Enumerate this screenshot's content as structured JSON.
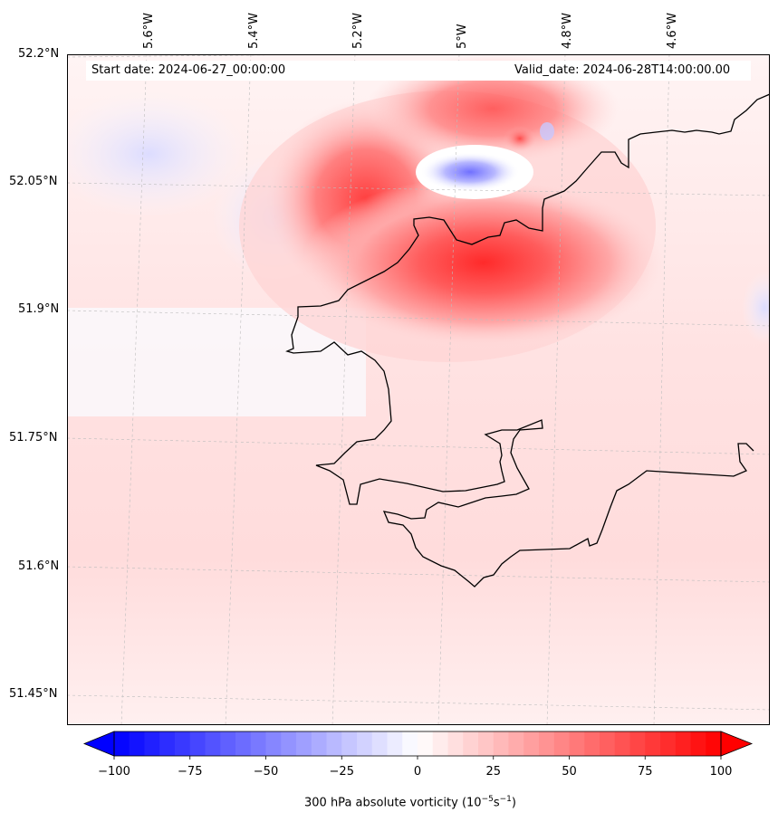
{
  "header": {
    "start_date": "Start date: 2024-06-27_00:00:00",
    "valid_date": "Valid_date: 2024-06-28T14:00:00.00"
  },
  "axes": {
    "lat_labels": [
      "52.2°N",
      "52.05°N",
      "51.9°N",
      "51.75°N",
      "51.6°N",
      "51.45°N"
    ],
    "lon_labels": [
      "5.6°W",
      "5.4°W",
      "5.2°W",
      "5°W",
      "4.8°W",
      "4.6°W"
    ]
  },
  "colorbar": {
    "ticks": [
      "−100",
      "−75",
      "−50",
      "−25",
      "0",
      "25",
      "50",
      "75",
      "100"
    ],
    "tick_values": [
      -100,
      -75,
      -50,
      -25,
      0,
      25,
      50,
      75,
      100
    ],
    "range": [
      -100,
      100
    ],
    "title": "300 hPa absolute vorticity (10",
    "title_exp1": "−5",
    "title_mid": "s",
    "title_exp2": "−1",
    "title_end": ")",
    "colors": {
      "negative": "#0000ff",
      "neutral": "#ffffff",
      "positive": "#ff0000"
    }
  },
  "chart_data": {
    "type": "heatmap",
    "variable": "300 hPa absolute vorticity",
    "units": "10^-5 s^-1",
    "lat_range": [
      51.43,
      52.2
    ],
    "lon_range": [
      -5.72,
      -4.55
    ],
    "features": [
      {
        "name": "main positive maximum",
        "lat": 51.97,
        "lon": -5.0,
        "value": 95
      },
      {
        "name": "secondary positive lobe",
        "lat": 52.03,
        "lon": -5.15,
        "value": 80
      },
      {
        "name": "negative minimum",
        "lat": 52.07,
        "lon": -4.98,
        "value": -40
      },
      {
        "name": "small positive cell",
        "lat": 52.12,
        "lon": -4.88,
        "value": 60
      },
      {
        "name": "weak negative area",
        "lat": 52.1,
        "lon": -5.65,
        "value": -10
      }
    ]
  }
}
